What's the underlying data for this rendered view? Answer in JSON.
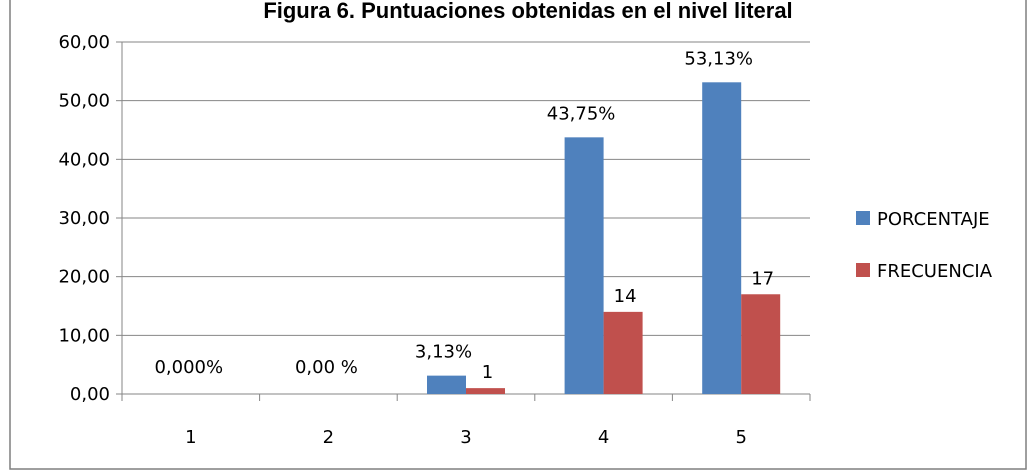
{
  "chart_data": {
    "type": "bar",
    "title": "Figura 6. Puntuaciones obtenidas en el nivel literal",
    "categories": [
      "1",
      "2",
      "3",
      "4",
      "5"
    ],
    "ylim": [
      0,
      60
    ],
    "yticks": [
      "0,00",
      "10,00",
      "20,00",
      "30,00",
      "40,00",
      "50,00",
      "60,00"
    ],
    "grid": true,
    "legend_position": "right",
    "series": [
      {
        "name": "PORCENTAJE",
        "color": "#4f81bd",
        "values": [
          0,
          0,
          3.13,
          43.75,
          53.13
        ],
        "labels": [
          "0,000%",
          "0,00 %",
          "3,13%",
          "43,75%",
          "53,13%"
        ]
      },
      {
        "name": "FRECUENCIA",
        "color": "#c0504d",
        "values": [
          0,
          0,
          1,
          14,
          17
        ],
        "labels": [
          "",
          "",
          "1",
          "14",
          "17"
        ]
      }
    ]
  }
}
